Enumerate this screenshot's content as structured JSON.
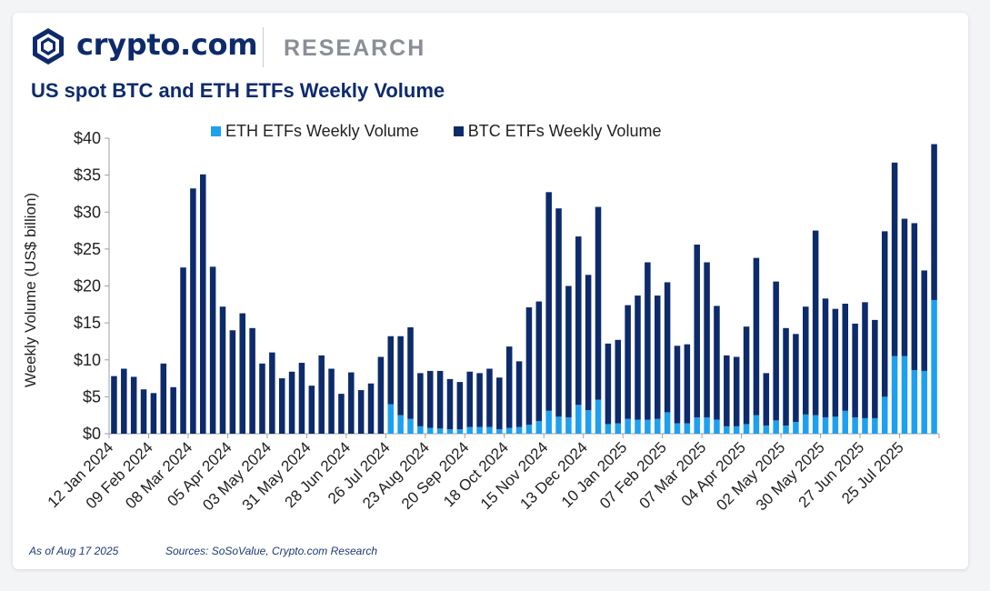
{
  "header": {
    "brand": "crypto.com",
    "section": "RESEARCH",
    "title": "US spot BTC and ETH ETFs Weekly Volume"
  },
  "footer": {
    "as_of": "As of Aug 17 2025",
    "sources": "Sources: SoSoValue, Crypto.com Research"
  },
  "colors": {
    "eth": "#1ea0f0",
    "btc": "#0d2b6b",
    "axis": "#9aa0a8",
    "brand": "#0d2b6b"
  },
  "chart_data": {
    "type": "bar",
    "stacked": true,
    "title": "US spot BTC and ETH ETFs Weekly Volume",
    "xlabel": "",
    "ylabel": "Weekly Volume (US$ billion)",
    "ylim": [
      0,
      40
    ],
    "yticks": [
      "$0",
      "$5",
      "$10",
      "$15",
      "$20",
      "$25",
      "$30",
      "$35",
      "$40"
    ],
    "ytick_values": [
      0,
      5,
      10,
      15,
      20,
      25,
      30,
      35,
      40
    ],
    "legend": [
      "ETH ETFs Weekly Volume",
      "BTC ETFs Weekly Volume"
    ],
    "legend_position": "top",
    "xtick_labels": [
      "12 Jan 2024",
      "09 Feb 2024",
      "08 Mar 2024",
      "05 Apr 2024",
      "03 May 2024",
      "31 May 2024",
      "28 Jun 2024",
      "26 Jul 2024",
      "23 Aug 2024",
      "20 Sep 2024",
      "18 Oct 2024",
      "15 Nov 2024",
      "13 Dec 2024",
      "10 Jan 2025",
      "07 Feb 2025",
      "07 Mar 2025",
      "04 Apr 2025",
      "02 May 2025",
      "30 May 2025",
      "27 Jun 2025",
      "25 Jul 2025"
    ],
    "xtick_every": 4,
    "series": [
      {
        "name": "ETH ETFs Weekly Volume",
        "values": [
          0,
          0,
          0,
          0,
          0,
          0,
          0,
          0,
          0,
          0,
          0,
          0,
          0,
          0,
          0,
          0,
          0,
          0,
          0,
          0,
          0,
          0,
          0,
          0,
          0,
          0,
          0,
          0,
          4.0,
          2.5,
          2.0,
          1.0,
          0.8,
          0.7,
          0.6,
          0.6,
          0.9,
          0.9,
          0.9,
          0.6,
          0.8,
          0.9,
          1.2,
          1.7,
          3.1,
          2.3,
          2.2,
          3.9,
          3.2,
          4.6,
          1.3,
          1.4,
          2.0,
          1.9,
          1.9,
          2.0,
          2.9,
          1.4,
          1.4,
          2.2,
          2.2,
          1.9,
          1.0,
          1.0,
          1.3,
          2.5,
          1.1,
          1.8,
          1.1,
          1.6,
          2.6,
          2.5,
          2.2,
          2.3,
          3.1,
          2.2,
          2.1,
          2.1,
          5.0,
          10.5,
          10.5,
          8.6,
          8.5,
          18.1
        ]
      },
      {
        "name": "BTC ETFs Weekly Volume",
        "values": [
          7.8,
          8.8,
          7.7,
          6.0,
          5.5,
          9.5,
          6.3,
          22.5,
          33.2,
          35.1,
          22.6,
          17.2,
          14.0,
          16.3,
          14.3,
          9.5,
          11.0,
          7.5,
          8.4,
          9.6,
          6.5,
          10.6,
          8.8,
          5.4,
          8.3,
          5.9,
          6.8,
          10.4,
          9.2,
          10.7,
          12.4,
          7.2,
          7.7,
          7.8,
          6.8,
          6.4,
          7.5,
          7.3,
          7.9,
          7.0,
          11.0,
          8.9,
          15.9,
          16.2,
          29.6,
          28.2,
          17.8,
          22.8,
          18.3,
          26.1,
          10.9,
          11.3,
          15.4,
          16.8,
          21.3,
          16.7,
          17.6,
          10.5,
          10.7,
          23.4,
          21.0,
          15.4,
          9.6,
          9.4,
          13.2,
          21.3,
          7.1,
          18.8,
          13.2,
          11.9,
          14.6,
          25.0,
          16.1,
          14.6,
          14.5,
          12.7,
          15.7,
          13.3,
          22.4,
          26.2,
          18.6,
          19.9,
          13.6,
          21.1
        ]
      }
    ]
  }
}
